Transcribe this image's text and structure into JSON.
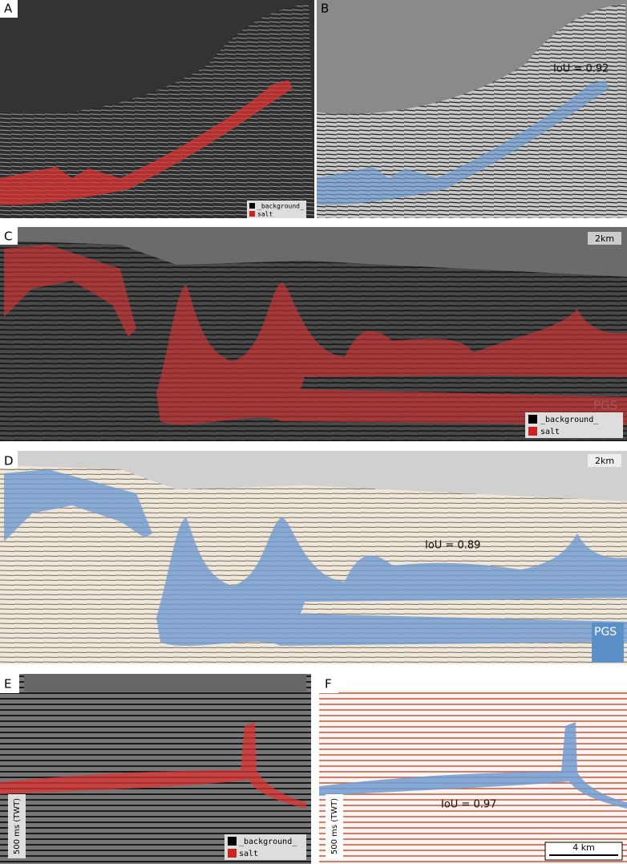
{
  "panels": [
    {
      "letter": "A",
      "legend": [
        "_background_",
        "salt"
      ]
    },
    {
      "letter": "B",
      "annotation": "IoU = 0.92"
    },
    {
      "letter": "C",
      "scale_bar": "2km",
      "watermark": "PGS",
      "legend": [
        "_background_",
        "salt"
      ]
    },
    {
      "letter": "D",
      "scale_bar": "2km",
      "annotation": "IoU = 0.89",
      "watermark": "PGS"
    },
    {
      "letter": "E",
      "vertical_scale": "500 ms (TWT)",
      "legend": [
        "_background_",
        "salt"
      ]
    },
    {
      "letter": "F",
      "vertical_scale": "500 ms (TWT)",
      "annotation": "IoU = 0.97",
      "scale_bar": "4 km"
    }
  ]
}
